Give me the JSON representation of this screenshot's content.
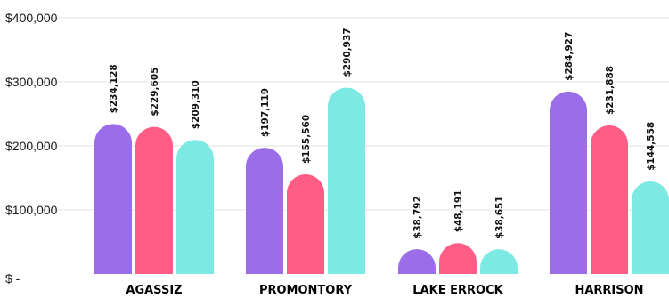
{
  "chart_data": {
    "type": "bar",
    "categories": [
      "AGASSIZ",
      "PROMONTORY",
      "LAKE ERROCK",
      "HARRISON"
    ],
    "series": [
      {
        "color": "#9b6de8",
        "values": [
          234128,
          197119,
          38792,
          284927
        ]
      },
      {
        "color": "#ff5c86",
        "values": [
          229605,
          155560,
          48191,
          231888
        ]
      },
      {
        "color": "#7de9e3",
        "values": [
          209310,
          290937,
          38651,
          144558
        ]
      }
    ],
    "data_labels": [
      [
        "$234,128",
        "$197,119",
        "$38,792",
        "$284,927"
      ],
      [
        "$229,605",
        "$155,560",
        "$48,191",
        "$231,888"
      ],
      [
        "$209,310",
        "$290,937",
        "$38,651",
        "$144,558"
      ]
    ],
    "y_ticks": [
      {
        "value": 0,
        "label": "$ -"
      },
      {
        "value": 100000,
        "label": "$100,000"
      },
      {
        "value": 200000,
        "label": "$200,000"
      },
      {
        "value": 300000,
        "label": "$300,000"
      },
      {
        "value": 400000,
        "label": "$400,000"
      }
    ],
    "ylim": [
      0,
      400000
    ],
    "grid": true,
    "legend": "none",
    "bar_style": "rounded-top"
  }
}
